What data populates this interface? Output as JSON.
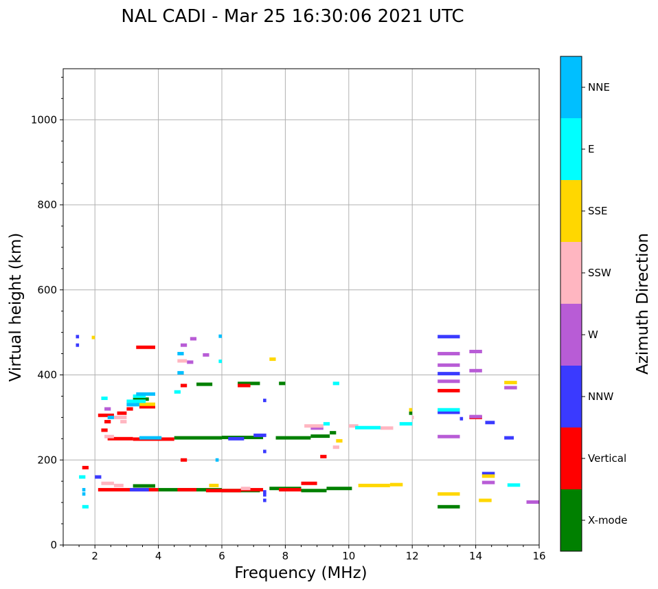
{
  "chart_data": {
    "type": "scatter",
    "title": "NAL CADI - Mar 25 16:30:06 2021 UTC",
    "xlabel": "Frequency (MHz)",
    "ylabel": "Virtual height (km)",
    "xlim": [
      1,
      16
    ],
    "ylim": [
      0,
      1120
    ],
    "xticks": [
      2,
      4,
      6,
      8,
      10,
      12,
      14,
      16
    ],
    "yticks": [
      0,
      200,
      400,
      600,
      800,
      1000
    ],
    "grid": true,
    "colorbar": {
      "label": "Azimuth Direction",
      "categories": [
        {
          "name": "X-mode",
          "color": "#008000"
        },
        {
          "name": "Vertical",
          "color": "#ff0000"
        },
        {
          "name": "NNW",
          "color": "#3a3aff"
        },
        {
          "name": "W",
          "color": "#b85cd6"
        },
        {
          "name": "SSW",
          "color": "#ffb6c1"
        },
        {
          "name": "SSE",
          "color": "#ffd700"
        },
        {
          "name": "E",
          "color": "#00ffff"
        },
        {
          "name": "NNE",
          "color": "#00bfff"
        }
      ]
    },
    "series": [
      {
        "name": "X-mode",
        "segments": [
          [
            3.2,
            3.9,
            139
          ],
          [
            4.0,
            6.0,
            130
          ],
          [
            6.0,
            7.2,
            128
          ],
          [
            7.5,
            8.5,
            133
          ],
          [
            8.5,
            9.3,
            128
          ],
          [
            9.3,
            10.1,
            133
          ],
          [
            4.5,
            6.0,
            252
          ],
          [
            6.0,
            7.3,
            253
          ],
          [
            7.7,
            8.8,
            252
          ],
          [
            8.8,
            9.4,
            256
          ],
          [
            9.4,
            9.6,
            264
          ],
          [
            5.2,
            5.7,
            378
          ],
          [
            6.5,
            7.2,
            380
          ],
          [
            7.8,
            8.0,
            380
          ],
          [
            3.2,
            3.7,
            343
          ],
          [
            12.8,
            13.5,
            90
          ],
          [
            11.9,
            12.0,
            310
          ]
        ]
      },
      {
        "name": "Vertical",
        "segments": [
          [
            1.6,
            1.8,
            182
          ],
          [
            2.1,
            4.0,
            130
          ],
          [
            4.6,
            5.2,
            130
          ],
          [
            5.5,
            6.6,
            128
          ],
          [
            6.6,
            7.3,
            130
          ],
          [
            7.8,
            8.5,
            130
          ],
          [
            8.5,
            9.0,
            145
          ],
          [
            2.1,
            2.6,
            305
          ],
          [
            2.3,
            2.5,
            290
          ],
          [
            2.2,
            2.4,
            270
          ],
          [
            2.4,
            3.2,
            250
          ],
          [
            3.2,
            4.5,
            249
          ],
          [
            2.7,
            3.0,
            310
          ],
          [
            3.0,
            3.2,
            320
          ],
          [
            3.3,
            3.9,
            465
          ],
          [
            3.4,
            3.9,
            325
          ],
          [
            4.7,
            4.9,
            375
          ],
          [
            6.5,
            6.9,
            375
          ],
          [
            4.7,
            4.9,
            200
          ],
          [
            9.1,
            9.3,
            208
          ],
          [
            12.8,
            13.5,
            363
          ],
          [
            13.8,
            14.2,
            300
          ]
        ]
      },
      {
        "name": "NNW",
        "segments": [
          [
            2.0,
            2.2,
            160
          ],
          [
            3.1,
            3.7,
            130
          ],
          [
            7.3,
            7.4,
            125
          ],
          [
            7.3,
            7.4,
            118
          ],
          [
            7.3,
            7.4,
            105
          ],
          [
            6.2,
            6.7,
            250
          ],
          [
            7.0,
            7.4,
            258
          ],
          [
            12.8,
            13.5,
            490
          ],
          [
            12.8,
            13.5,
            403
          ],
          [
            12.8,
            13.5,
            312
          ],
          [
            14.2,
            14.6,
            168
          ],
          [
            14.3,
            14.6,
            288
          ],
          [
            14.9,
            15.2,
            252
          ],
          [
            13.5,
            13.6,
            297
          ],
          [
            7.3,
            7.4,
            220
          ],
          [
            7.3,
            7.4,
            340
          ],
          [
            1.4,
            1.5,
            490
          ],
          [
            1.4,
            1.5,
            470
          ]
        ]
      },
      {
        "name": "W",
        "segments": [
          [
            12.8,
            13.5,
            255
          ],
          [
            12.8,
            13.5,
            450
          ],
          [
            12.8,
            13.5,
            423
          ],
          [
            12.8,
            13.5,
            385
          ],
          [
            13.8,
            14.2,
            455
          ],
          [
            13.8,
            14.2,
            410
          ],
          [
            13.8,
            14.2,
            302
          ],
          [
            14.2,
            14.6,
            147
          ],
          [
            14.9,
            15.3,
            370
          ],
          [
            15.6,
            16.0,
            101
          ],
          [
            5.0,
            5.2,
            485
          ],
          [
            5.4,
            5.6,
            447
          ],
          [
            4.7,
            4.9,
            470
          ],
          [
            4.9,
            5.1,
            430
          ],
          [
            2.3,
            2.5,
            320
          ],
          [
            8.8,
            9.2,
            275
          ]
        ]
      },
      {
        "name": "SSW",
        "segments": [
          [
            2.2,
            2.6,
            145
          ],
          [
            2.6,
            2.9,
            140
          ],
          [
            2.6,
            3.0,
            300
          ],
          [
            2.3,
            2.6,
            255
          ],
          [
            2.8,
            3.0,
            290
          ],
          [
            8.6,
            9.2,
            280
          ],
          [
            10.0,
            10.3,
            280
          ],
          [
            11.0,
            11.4,
            275
          ],
          [
            9.5,
            9.7,
            230
          ],
          [
            4.6,
            4.9,
            433
          ],
          [
            6.6,
            6.9,
            133
          ],
          [
            12.0,
            12.05,
            300
          ]
        ]
      },
      {
        "name": "SSE",
        "segments": [
          [
            10.3,
            11.3,
            140
          ],
          [
            11.3,
            11.7,
            142
          ],
          [
            11.9,
            12.0,
            318
          ],
          [
            12.8,
            13.5,
            120
          ],
          [
            14.1,
            14.5,
            105
          ],
          [
            14.2,
            14.6,
            162
          ],
          [
            14.9,
            15.3,
            382
          ],
          [
            3.3,
            3.9,
            331
          ],
          [
            5.6,
            5.9,
            140
          ],
          [
            7.5,
            7.7,
            437
          ],
          [
            1.9,
            2.0,
            488
          ],
          [
            9.6,
            9.8,
            245
          ]
        ]
      },
      {
        "name": "E",
        "segments": [
          [
            1.6,
            1.8,
            90
          ],
          [
            1.5,
            1.7,
            160
          ],
          [
            3.0,
            3.6,
            338
          ],
          [
            3.2,
            3.6,
            350
          ],
          [
            2.2,
            2.4,
            345
          ],
          [
            10.2,
            11.0,
            276
          ],
          [
            11.6,
            12.0,
            285
          ],
          [
            12.8,
            13.5,
            318
          ],
          [
            15.0,
            15.4,
            141
          ],
          [
            9.2,
            9.4,
            285
          ],
          [
            9.5,
            9.7,
            380
          ],
          [
            5.9,
            6.0,
            432
          ],
          [
            4.5,
            4.7,
            360
          ]
        ]
      },
      {
        "name": "NNE",
        "segments": [
          [
            3.3,
            3.9,
            355
          ],
          [
            3.0,
            3.4,
            330
          ],
          [
            2.4,
            2.6,
            300
          ],
          [
            1.6,
            1.7,
            130
          ],
          [
            1.6,
            1.7,
            120
          ],
          [
            5.8,
            5.9,
            200
          ],
          [
            5.9,
            6.0,
            491
          ],
          [
            4.6,
            4.8,
            450
          ],
          [
            3.4,
            4.1,
            252
          ],
          [
            4.6,
            4.8,
            405
          ]
        ]
      }
    ]
  }
}
